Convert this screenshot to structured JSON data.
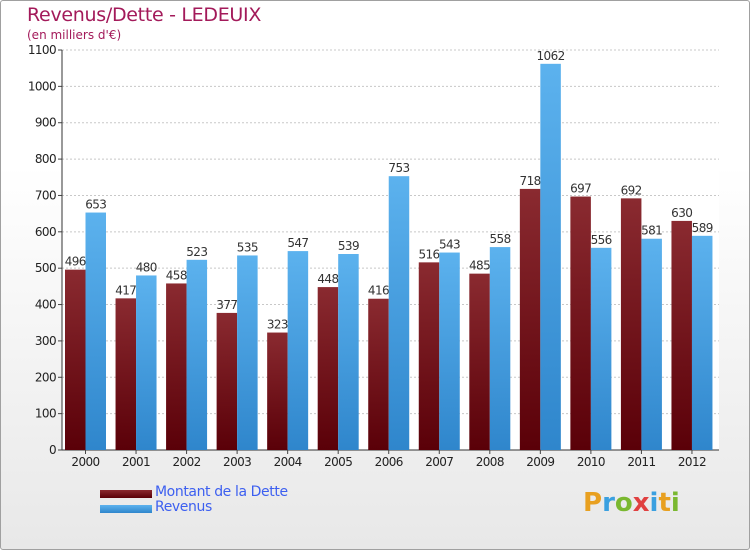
{
  "header": {
    "title": "Revenus/Dette - LEDEUIX",
    "subtitle": "(en milliers d'€)"
  },
  "chart_data": {
    "type": "bar",
    "title": "Revenus/Dette - LEDEUIX",
    "subtitle": "(en milliers d'€)",
    "xlabel": "",
    "ylabel": "",
    "ylim": [
      0,
      1100
    ],
    "yticks": [
      0,
      100,
      200,
      300,
      400,
      500,
      600,
      700,
      800,
      900,
      1000,
      1100
    ],
    "grid": true,
    "categories": [
      "2000",
      "2001",
      "2002",
      "2003",
      "2004",
      "2005",
      "2006",
      "2007",
      "2008",
      "2009",
      "2010",
      "2011",
      "2012"
    ],
    "series": [
      {
        "name": "Montant de la Dette",
        "color": "#6b0f15",
        "values": [
          496,
          417,
          458,
          377,
          323,
          448,
          416,
          516,
          485,
          718,
          697,
          692,
          630
        ]
      },
      {
        "name": "Revenus",
        "color": "#4aa3e6",
        "values": [
          653,
          480,
          523,
          535,
          547,
          539,
          753,
          543,
          558,
          1062,
          556,
          581,
          589
        ]
      }
    ],
    "legend": "bottom-left"
  },
  "logo": {
    "letters": [
      "P",
      "r",
      "o",
      "x",
      "i",
      "t",
      "i"
    ],
    "colors": [
      "#e8a020",
      "#3aa0e0",
      "#7ab830",
      "#e04040",
      "#3aa0e0",
      "#e8a020",
      "#7ab830"
    ]
  }
}
